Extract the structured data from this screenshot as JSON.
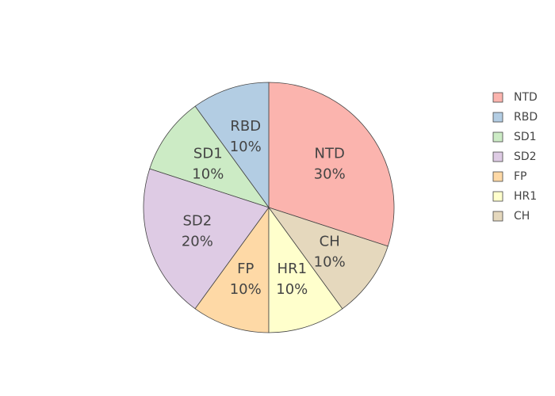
{
  "chart_data": {
    "type": "pie",
    "categories": [
      "NTD",
      "RBD",
      "SD1",
      "SD2",
      "FP",
      "HR1",
      "CH"
    ],
    "values": [
      30,
      10,
      10,
      20,
      10,
      10,
      10
    ],
    "value_labels": [
      "30%",
      "10%",
      "10%",
      "20%",
      "10%",
      "10%",
      "10%"
    ],
    "colors": [
      "#fbb4ae",
      "#b3cde3",
      "#ccebc5",
      "#decbe4",
      "#fed9a6",
      "#ffffcc",
      "#e5d8bd"
    ],
    "legend": "right"
  }
}
